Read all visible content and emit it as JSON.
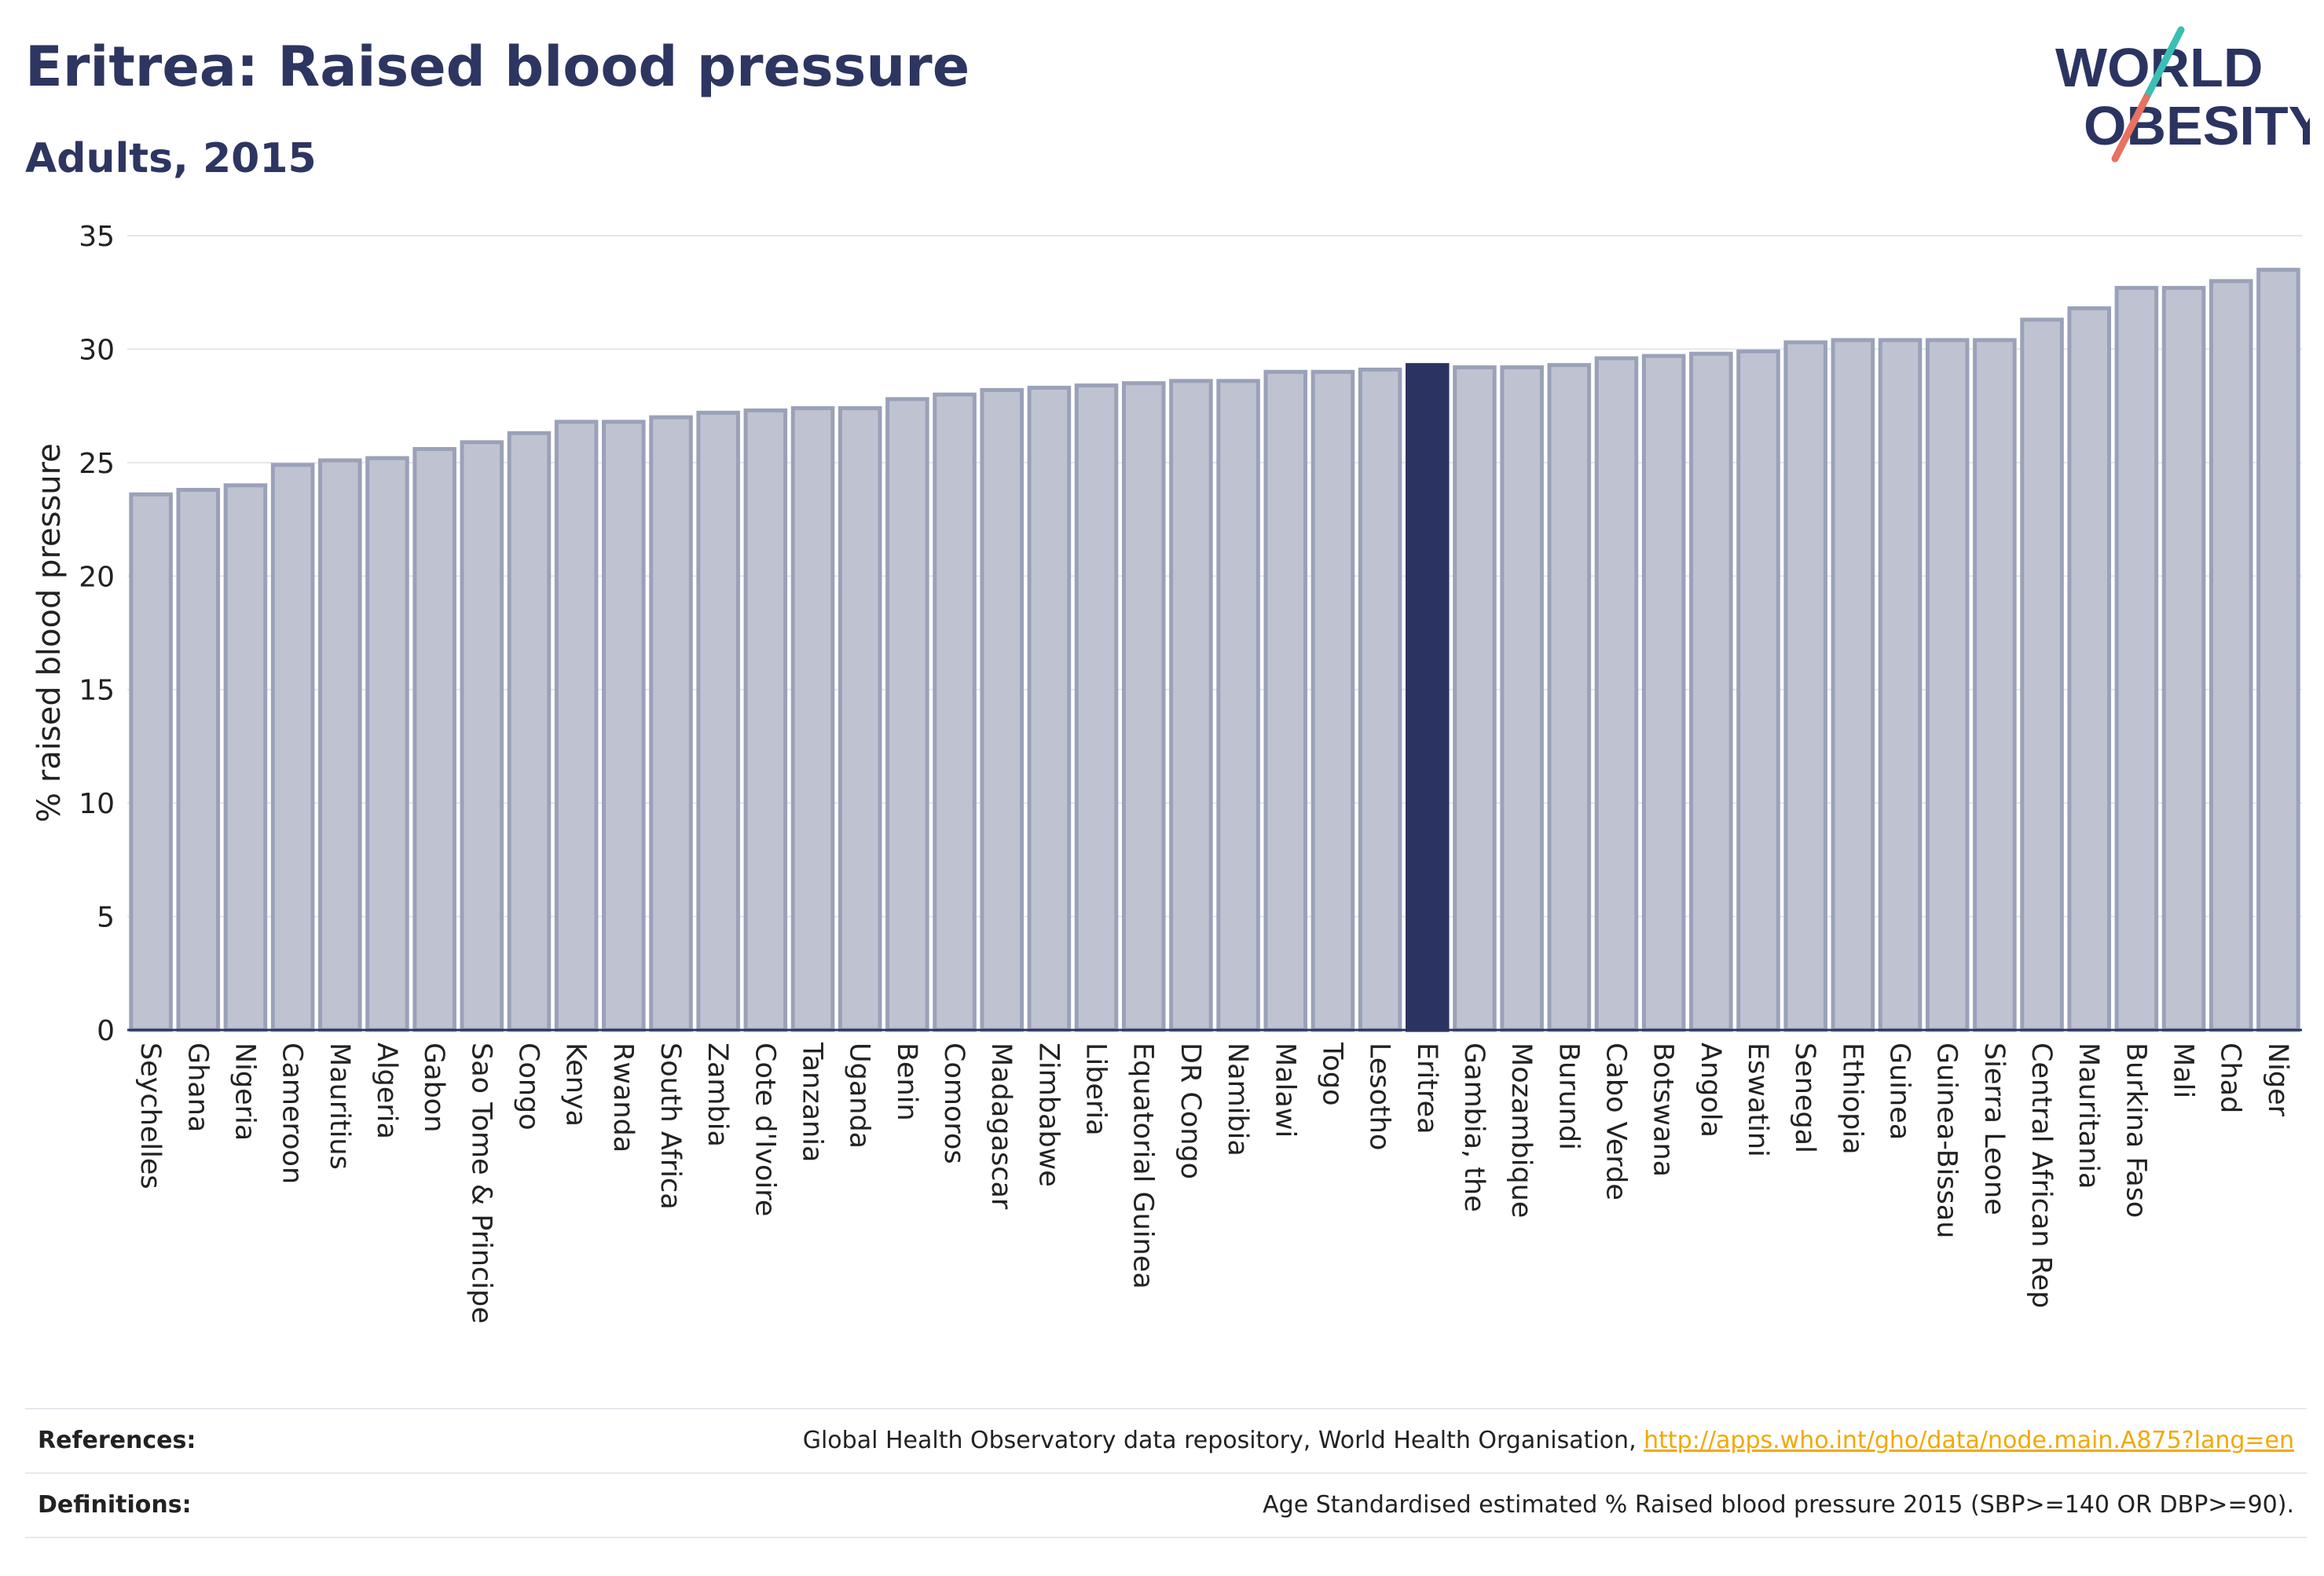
{
  "header": {
    "title": "Eritrea: Raised blood pressure",
    "subtitle": "Adults, 2015"
  },
  "logo": {
    "line1": "WORLD",
    "line2": "OBESITY"
  },
  "colors": {
    "bar_fill": "#bfc3d1",
    "bar_stroke": "#9aa1b8",
    "highlight": "#2b3461",
    "logo_teal": "#3bbfb4",
    "logo_coral": "#e8715f",
    "link": "#f2a900"
  },
  "chart_data": {
    "type": "bar",
    "ylabel": "% raised blood pressure",
    "xlabel": "",
    "ylim": [
      0,
      35
    ],
    "yticks": [
      0,
      5,
      10,
      15,
      20,
      25,
      30,
      35
    ],
    "grid": true,
    "highlight_category": "Eritrea",
    "categories": [
      "Seychelles",
      "Ghana",
      "Nigeria",
      "Cameroon",
      "Mauritius",
      "Algeria",
      "Gabon",
      "Sao Tome & Principe",
      "Congo",
      "Kenya",
      "Rwanda",
      "South Africa",
      "Zambia",
      "Cote d'Ivoire",
      "Tanzania",
      "Uganda",
      "Benin",
      "Comoros",
      "Madagascar",
      "Zimbabwe",
      "Liberia",
      "Equatorial Guinea",
      "DR Congo",
      "Namibia",
      "Malawi",
      "Togo",
      "Lesotho",
      "Eritrea",
      "Gambia, the",
      "Mozambique",
      "Burundi",
      "Cabo Verde",
      "Botswana",
      "Angola",
      "Eswatini",
      "Senegal",
      "Ethiopia",
      "Guinea",
      "Guinea-Bissau",
      "Sierra Leone",
      "Central African Rep",
      "Mauritania",
      "Burkina Faso",
      "Mali",
      "Chad",
      "Niger"
    ],
    "values": [
      23.6,
      23.8,
      24.0,
      24.9,
      25.1,
      25.2,
      25.6,
      25.9,
      26.3,
      26.8,
      26.8,
      27.0,
      27.2,
      27.3,
      27.4,
      27.4,
      27.8,
      28.0,
      28.2,
      28.3,
      28.4,
      28.5,
      28.6,
      28.6,
      29.0,
      29.0,
      29.1,
      29.3,
      29.2,
      29.2,
      29.3,
      29.6,
      29.7,
      29.8,
      29.9,
      30.3,
      30.4,
      30.4,
      30.4,
      30.4,
      31.3,
      31.8,
      32.7,
      32.7,
      33.0,
      33.5
    ]
  },
  "footer": {
    "references_label": "References:",
    "references_text": "Global Health Observatory data repository, World Health Organisation, ",
    "references_link": "http://apps.who.int/gho/data/node.main.A875?lang=en",
    "definitions_label": "Definitions:",
    "definitions_text": "Age Standardised estimated % Raised blood pressure 2015 (SBP>=140 OR DBP>=90)."
  }
}
